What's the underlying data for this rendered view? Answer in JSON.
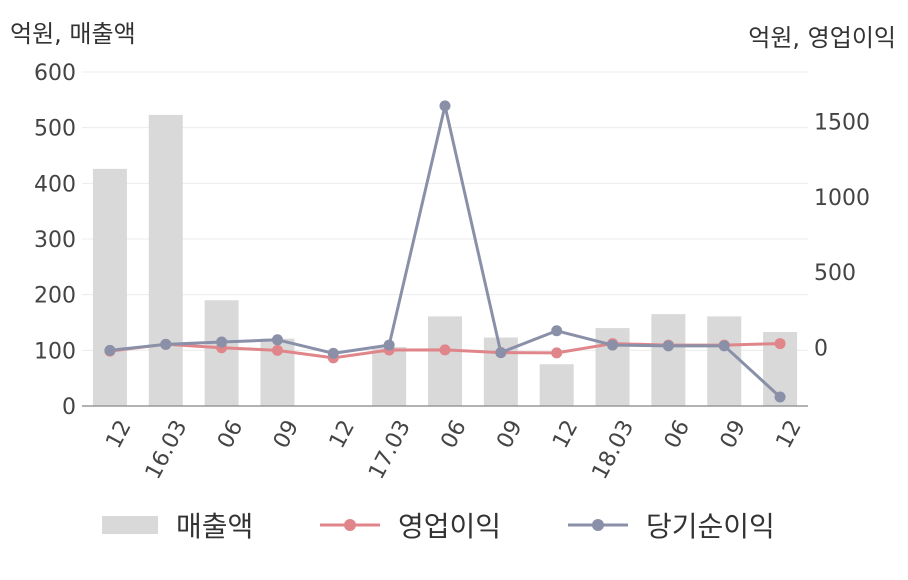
{
  "chart_data": {
    "type": "bar+line",
    "ylabel_left": "억원, 매출액",
    "ylabel_right": "억원, 영업이익",
    "categories": [
      "12",
      "16.03",
      "06",
      "09",
      "12",
      "17.03",
      "06",
      "09",
      "12",
      "18.03",
      "06",
      "09",
      "12"
    ],
    "left_axis": {
      "ticks": [
        0,
        100,
        200,
        300,
        400,
        500,
        600
      ],
      "ylim": [
        0,
        600
      ]
    },
    "right_axis": {
      "ticks": [
        0,
        500,
        1000,
        1500
      ],
      "ylim": [
        -390,
        1830
      ]
    },
    "series": [
      {
        "name": "매출액",
        "kind": "bar",
        "axis": "left",
        "color": "#d9d9d9",
        "values": [
          426,
          523,
          190,
          121,
          null,
          106,
          161,
          123,
          75,
          140,
          165,
          161,
          133
        ]
      },
      {
        "name": "영업이익",
        "kind": "line",
        "axis": "right",
        "color": "#e0868b",
        "values": [
          -25,
          20,
          -3,
          -20,
          -70,
          -18,
          -17,
          -35,
          -37,
          25,
          15,
          15,
          25
        ]
      },
      {
        "name": "당기순이익",
        "kind": "line",
        "axis": "right",
        "color": "#8a90a8",
        "values": [
          -20,
          20,
          35,
          50,
          -40,
          15,
          1605,
          -35,
          110,
          15,
          10,
          10,
          -330
        ]
      }
    ],
    "grid": true,
    "legend_position": "bottom"
  }
}
